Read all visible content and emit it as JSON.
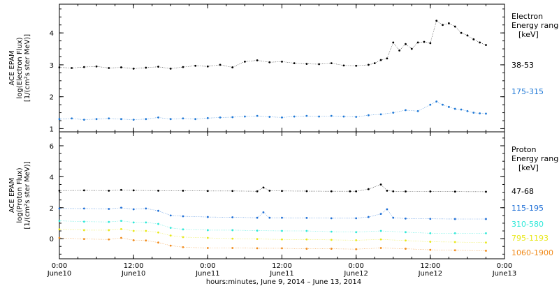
{
  "chart_data": [
    {
      "type": "scatter",
      "ylabel_lines": [
        "ACE EPAM",
        "log(Electron Flux)",
        "[1/(cm²s ster MeV)]"
      ],
      "ylim": [
        0.9,
        4.9
      ],
      "yticks": [
        1,
        2,
        3,
        4
      ],
      "legend_title": [
        "Electron",
        "Energy range",
        "[keV]"
      ],
      "legend_placement": "right",
      "series": [
        {
          "name": "38-53",
          "color": "#000000",
          "x": [
            0,
            2,
            4,
            6,
            8,
            10,
            12,
            14,
            16,
            18,
            20,
            22,
            24,
            26,
            28,
            30,
            32,
            34,
            36,
            38,
            40,
            42,
            44,
            46,
            48,
            50,
            51,
            52,
            53,
            54,
            55,
            56,
            57,
            58,
            59,
            60,
            61,
            62,
            63,
            64,
            65,
            66,
            67,
            68,
            69
          ],
          "values": [
            2.92,
            2.9,
            2.93,
            2.95,
            2.9,
            2.92,
            2.88,
            2.91,
            2.94,
            2.88,
            2.93,
            2.97,
            2.95,
            3.0,
            2.92,
            3.1,
            3.14,
            3.08,
            3.1,
            3.05,
            3.03,
            3.02,
            3.05,
            2.98,
            2.97,
            3.0,
            3.05,
            3.15,
            3.2,
            3.7,
            3.45,
            3.65,
            3.5,
            3.7,
            3.72,
            3.68,
            4.38,
            4.25,
            4.3,
            4.2,
            4.0,
            3.92,
            3.8,
            3.7,
            3.62
          ]
        },
        {
          "name": "175-315",
          "color": "#1f78d6",
          "x": [
            0,
            2,
            4,
            6,
            8,
            10,
            12,
            14,
            16,
            18,
            20,
            22,
            24,
            26,
            28,
            30,
            32,
            34,
            36,
            38,
            40,
            42,
            44,
            46,
            48,
            50,
            52,
            54,
            56,
            58,
            60,
            61,
            62,
            63,
            64,
            65,
            66,
            67,
            68,
            69
          ],
          "values": [
            1.3,
            1.32,
            1.28,
            1.3,
            1.32,
            1.3,
            1.28,
            1.3,
            1.35,
            1.3,
            1.32,
            1.3,
            1.33,
            1.35,
            1.36,
            1.38,
            1.4,
            1.37,
            1.35,
            1.38,
            1.4,
            1.38,
            1.4,
            1.38,
            1.37,
            1.42,
            1.45,
            1.5,
            1.58,
            1.55,
            1.75,
            1.85,
            1.75,
            1.68,
            1.62,
            1.6,
            1.55,
            1.5,
            1.48,
            1.47
          ]
        }
      ]
    },
    {
      "type": "scatter",
      "ylabel_lines": [
        "ACE EPAM",
        "log(Proton Flux)",
        "[1/(cm²s ster MeV)]"
      ],
      "ylim": [
        -1.3,
        6.9
      ],
      "yticks": [
        0,
        2,
        4,
        6
      ],
      "legend_title": [
        "Proton",
        "Energy range",
        "[keV]"
      ],
      "legend_placement": "right",
      "series": [
        {
          "name": "47-68",
          "color": "#000000",
          "x": [
            0,
            4,
            8,
            10,
            12,
            16,
            20,
            24,
            28,
            32,
            33,
            34,
            36,
            40,
            44,
            47,
            48,
            50,
            52,
            53,
            54,
            56,
            60,
            64,
            69
          ],
          "values": [
            3.1,
            3.12,
            3.1,
            3.15,
            3.12,
            3.1,
            3.1,
            3.08,
            3.08,
            3.06,
            3.3,
            3.1,
            3.08,
            3.07,
            3.06,
            3.06,
            3.06,
            3.2,
            3.5,
            3.1,
            3.06,
            3.05,
            3.05,
            3.04,
            3.03
          ]
        },
        {
          "name": "115-195",
          "color": "#1f6fd6",
          "x": [
            0,
            4,
            8,
            10,
            12,
            14,
            16,
            18,
            20,
            24,
            28,
            32,
            33,
            34,
            36,
            40,
            44,
            48,
            50,
            52,
            53,
            54,
            56,
            60,
            64,
            69
          ],
          "values": [
            1.95,
            1.95,
            1.92,
            2.0,
            1.9,
            1.95,
            1.8,
            1.5,
            1.45,
            1.4,
            1.38,
            1.35,
            1.7,
            1.35,
            1.35,
            1.34,
            1.32,
            1.32,
            1.4,
            1.6,
            1.9,
            1.35,
            1.3,
            1.28,
            1.27,
            1.27
          ]
        },
        {
          "name": "310-580",
          "color": "#2ee8d8",
          "x": [
            0,
            4,
            8,
            10,
            12,
            14,
            16,
            18,
            20,
            24,
            28,
            32,
            36,
            40,
            44,
            48,
            52,
            56,
            60,
            64,
            69
          ],
          "values": [
            1.15,
            1.1,
            1.08,
            1.15,
            1.05,
            1.05,
            0.95,
            0.7,
            0.6,
            0.55,
            0.55,
            0.52,
            0.5,
            0.5,
            0.45,
            0.42,
            0.5,
            0.42,
            0.35,
            0.35,
            0.35
          ]
        },
        {
          "name": "795-1193",
          "color": "#e8e81a",
          "x": [
            0,
            4,
            8,
            10,
            12,
            14,
            16,
            18,
            20,
            24,
            28,
            32,
            36,
            40,
            44,
            48,
            52,
            56,
            60,
            64,
            69
          ],
          "values": [
            0.6,
            0.55,
            0.55,
            0.62,
            0.5,
            0.5,
            0.4,
            0.2,
            0.1,
            0.05,
            0.0,
            -0.02,
            -0.05,
            -0.05,
            -0.08,
            -0.1,
            -0.05,
            -0.12,
            -0.2,
            -0.22,
            -0.25
          ]
        },
        {
          "name": "1060-1900",
          "color": "#f08a1a",
          "x": [
            0,
            4,
            8,
            10,
            12,
            14,
            16,
            18,
            20,
            24,
            28,
            32,
            36,
            40,
            44,
            48,
            52,
            56,
            60,
            64,
            69
          ],
          "values": [
            0.05,
            -0.02,
            -0.05,
            0.05,
            -0.1,
            -0.12,
            -0.25,
            -0.45,
            -0.55,
            -0.6,
            -0.6,
            -0.62,
            -0.62,
            -0.65,
            -0.65,
            -0.68,
            -0.6,
            -0.65,
            -0.72,
            -0.75,
            -0.78
          ]
        }
      ]
    }
  ],
  "x_axis": {
    "range_hours": [
      0,
      72
    ],
    "ticks": [
      {
        "hour": 0,
        "time": "0:00",
        "date": "June10"
      },
      {
        "hour": 12,
        "time": "12:00",
        "date": "June10"
      },
      {
        "hour": 24,
        "time": "0:00",
        "date": "June11"
      },
      {
        "hour": 36,
        "time": "12:00",
        "date": "June11"
      },
      {
        "hour": 48,
        "time": "0:00",
        "date": "June12"
      },
      {
        "hour": 60,
        "time": "12:00",
        "date": "June12"
      },
      {
        "hour": 72,
        "time": "0:00",
        "date": "June13"
      }
    ],
    "label": "hours:minutes, June  9, 2014 – June 13, 2014"
  }
}
